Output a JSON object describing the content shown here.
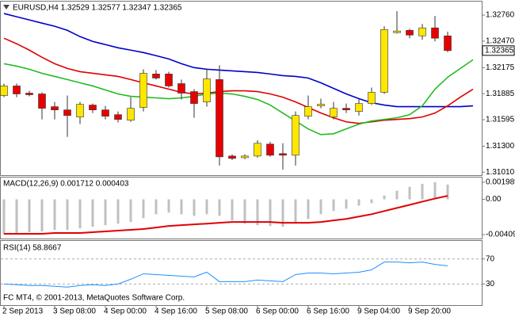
{
  "chart_data": [
    {
      "type": "candlestick",
      "title": "EURUSD,H4  1.32529 1.32577 1.32347 1.32365",
      "categories": [
        "2 Sep 2013",
        null,
        null,
        null,
        "3 Sep 08:00",
        null,
        null,
        null,
        "4 Sep 00:00",
        null,
        null,
        null,
        "4 Sep 16:00",
        null,
        null,
        null,
        "5 Sep 08:00",
        null,
        null,
        null,
        "6 Sep 00:00",
        null,
        null,
        null,
        "6 Sep 16:00",
        null,
        null,
        null,
        "9 Sep 04:00",
        null,
        null,
        null,
        "9 Sep 20:00",
        null,
        null,
        null,
        null,
        null
      ],
      "open": [
        1.31864,
        1.31971,
        1.31891,
        1.31882,
        1.3174,
        1.31704,
        1.31625,
        1.31758,
        1.31704,
        1.31651,
        1.31589,
        1.31731,
        1.32104,
        1.32104,
        1.31997,
        1.31908,
        1.31793,
        1.32042,
        1.3119,
        1.31172,
        1.3119,
        1.31323,
        1.31217,
        1.31199,
        1.31634,
        1.31749,
        1.31625,
        1.31722,
        1.31687,
        1.31775,
        1.319,
        1.32565,
        1.32591,
        1.32529,
        1.32618,
        1.32529,
        null,
        null
      ],
      "high": [
        1.31997,
        1.31997,
        1.31917,
        1.319,
        1.31793,
        1.31864,
        1.31793,
        1.31775,
        1.31749,
        1.31687,
        1.31846,
        1.32157,
        1.32148,
        1.3213,
        1.32042,
        1.31935,
        1.32166,
        1.32201,
        1.31208,
        1.31208,
        1.31367,
        1.3135,
        1.31332,
        1.31687,
        1.31864,
        1.31829,
        1.31793,
        1.31775,
        1.3182,
        1.31953,
        1.32636,
        1.32804,
        1.32609,
        1.32662,
        1.32751,
        1.32577,
        null,
        null
      ],
      "low": [
        1.31846,
        1.31846,
        1.31855,
        1.31598,
        1.31598,
        1.31403,
        1.31545,
        1.31669,
        1.31598,
        1.31563,
        1.31571,
        1.31687,
        1.32042,
        1.31953,
        1.3182,
        1.31616,
        1.3174,
        1.31084,
        1.31146,
        1.31155,
        1.31172,
        1.31181,
        1.31039,
        1.31084,
        1.31598,
        1.31722,
        1.31598,
        1.31669,
        1.31642,
        1.31758,
        1.31882,
        1.32556,
        1.32503,
        1.32485,
        1.32467,
        1.32347,
        null,
        null
      ],
      "close": [
        1.31971,
        1.31882,
        1.31873,
        1.31722,
        1.31704,
        1.31642,
        1.31767,
        1.31704,
        1.31634,
        1.31598,
        1.31722,
        1.32112,
        1.32059,
        1.31971,
        1.31891,
        1.31775,
        1.3205,
        1.31181,
        1.31163,
        1.3119,
        1.31332,
        1.31199,
        1.31199,
        1.31642,
        1.3174,
        1.31767,
        1.31722,
        1.31704,
        1.31775,
        1.319,
        1.326,
        1.32583,
        1.32538,
        1.32618,
        1.32503,
        1.32365,
        null,
        null
      ],
      "up_color": "#ffe600",
      "down_color": "#e60000",
      "lines": [
        {
          "color": "#0000cc",
          "values": [
            1.32778,
            1.32742,
            1.32707,
            1.32671,
            1.32636,
            1.32591,
            1.32521,
            1.32467,
            1.32432,
            1.32396,
            1.3237,
            1.32343,
            1.32308,
            1.32272,
            1.32219,
            1.32175,
            1.32157,
            1.32148,
            1.32139,
            1.3213,
            1.32121,
            1.32104,
            1.32086,
            1.32077,
            1.32059,
            1.32006,
            1.31944,
            1.31882,
            1.31829,
            1.31784,
            1.31758,
            1.3174,
            1.3174,
            1.3174,
            1.3174,
            1.3174,
            1.3174,
            1.31749
          ]
        },
        {
          "color": "#e00000",
          "values": [
            1.32503,
            1.32441,
            1.3237,
            1.3229,
            1.32219,
            1.32166,
            1.3213,
            1.32112,
            1.32095,
            1.32077,
            1.32042,
            1.32006,
            1.31971,
            1.31935,
            1.319,
            1.31882,
            1.31891,
            1.31908,
            1.31917,
            1.31917,
            1.31908,
            1.31882,
            1.31846,
            1.31793,
            1.31731,
            1.31669,
            1.31616,
            1.31571,
            1.31554,
            1.31571,
            1.31589,
            1.31598,
            1.31607,
            1.31625,
            1.31669,
            1.31749,
            1.31846,
            1.31935
          ]
        },
        {
          "color": "#22bb22",
          "values": [
            1.32219,
            1.32192,
            1.32157,
            1.32112,
            1.32077,
            1.32042,
            1.32006,
            1.31971,
            1.31926,
            1.31882,
            1.31855,
            1.31846,
            1.31838,
            1.31829,
            1.31838,
            1.31855,
            1.31882,
            1.31891,
            1.31882,
            1.31855,
            1.3182,
            1.31758,
            1.31669,
            1.3158,
            1.31492,
            1.31429,
            1.31438,
            1.31492,
            1.31545,
            1.3158,
            1.31598,
            1.31616,
            1.31651,
            1.31749,
            1.31935,
            1.32068,
            1.32166,
            1.32263
          ]
        }
      ],
      "ylim": [
        1.30977,
        1.32911
      ],
      "yticks": [
        {
          "value": 1.3276,
          "label": "1.32760"
        },
        {
          "value": 1.3247,
          "label": "1.32470"
        },
        1.32175,
        1.31885,
        1.31595,
        {
          "value": 1.313,
          "label": "1.31300"
        },
        {
          "value": 1.3101,
          "label": "1.31010"
        }
      ]
    },
    {
      "type": "macd",
      "title": "MACD(12,26,9) 0.001712 0.000403",
      "color": "#c0c0c0",
      "values": [
        -0.004096,
        -0.004,
        -0.00381,
        -0.00372,
        -0.00354,
        -0.00354,
        -0.00336,
        -0.00318,
        -0.003,
        -0.00282,
        -0.00263,
        -0.00218,
        -0.00173,
        -0.00154,
        -0.00173,
        -0.00191,
        -0.00173,
        -0.00191,
        -0.00245,
        -0.00282,
        -0.003,
        -0.00309,
        -0.00318,
        -0.00282,
        -0.00227,
        -0.00173,
        -0.00136,
        -0.00109,
        -0.00073,
        -0.00045,
        0.00045,
        0.001,
        0.00145,
        0.0018,
        0.001989,
        0.001712,
        null,
        null
      ],
      "signal": {
        "color": "#e00000",
        "values": [
          -0.004,
          -0.004,
          -0.004,
          -0.004,
          -0.00391,
          -0.00391,
          -0.00391,
          -0.00381,
          -0.00372,
          -0.00363,
          -0.00354,
          -0.00345,
          -0.00327,
          -0.00309,
          -0.003,
          -0.00291,
          -0.00282,
          -0.00272,
          -0.00263,
          -0.00263,
          -0.00263,
          -0.00263,
          -0.00272,
          -0.00272,
          -0.00272,
          -0.00263,
          -0.00245,
          -0.00227,
          -0.002,
          -0.00173,
          -0.00136,
          -0.001,
          -0.00064,
          -0.00027,
          9e-05,
          0.000403,
          null,
          null
        ]
      },
      "ylim": [
        -0.00455,
        0.00253
      ],
      "yticks": [
        0.001989,
        {
          "value": 0,
          "label": "0.00"
        },
        -0.004096
      ]
    },
    {
      "type": "line",
      "title": "RSI(14) 58.8667",
      "color": "#1e90ff",
      "values": [
        30,
        28.8,
        27.5,
        27.5,
        26.3,
        25,
        27.5,
        28.8,
        27.5,
        30,
        37.5,
        46.3,
        45,
        43.8,
        42.5,
        41.3,
        48.8,
        33.8,
        33.8,
        33.8,
        36.3,
        35,
        33.8,
        45,
        47.5,
        47.5,
        46.3,
        47.5,
        48.8,
        52.5,
        65,
        65,
        63.8,
        65,
        61.3,
        58.8667,
        null,
        null
      ],
      "ylim": [
        -3.75,
        98.75
      ],
      "yticks": [
        70,
        30
      ],
      "grid": true
    }
  ],
  "footer": "FC MT4, © 2001-2013, MetaQuotes Software Corp."
}
